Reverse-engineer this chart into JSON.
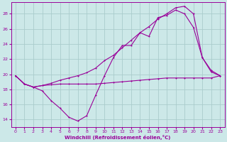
{
  "xlabel": "Windchill (Refroidissement éolien,°C)",
  "bg_color": "#cce8e8",
  "grid_color": "#aacccc",
  "line_color": "#990099",
  "xlim": [
    -0.5,
    23.5
  ],
  "ylim": [
    13.0,
    29.5
  ],
  "yticks": [
    14,
    16,
    18,
    20,
    22,
    24,
    26,
    28
  ],
  "xticks": [
    0,
    1,
    2,
    3,
    4,
    5,
    6,
    7,
    8,
    9,
    10,
    11,
    12,
    13,
    14,
    15,
    16,
    17,
    18,
    19,
    20,
    21,
    22,
    23
  ],
  "series1_x": [
    0,
    1,
    2,
    3,
    4,
    5,
    6,
    7,
    8,
    9,
    10,
    11,
    12,
    13,
    14,
    15,
    16,
    17,
    18,
    19,
    20,
    21,
    22,
    23
  ],
  "series1_y": [
    19.8,
    18.7,
    18.3,
    17.8,
    16.5,
    15.5,
    14.3,
    13.8,
    14.5,
    17.2,
    19.8,
    22.2,
    23.8,
    23.8,
    25.5,
    25.0,
    27.5,
    27.8,
    28.5,
    28.0,
    26.2,
    22.2,
    20.3,
    19.8
  ],
  "series2_x": [
    0,
    1,
    2,
    3,
    4,
    5,
    6,
    7,
    8,
    9,
    10,
    11,
    12,
    13,
    14,
    15,
    16,
    17,
    18,
    19,
    20,
    21,
    22,
    23
  ],
  "series2_y": [
    19.8,
    18.7,
    18.3,
    18.5,
    18.6,
    18.7,
    18.7,
    18.7,
    18.7,
    18.7,
    18.8,
    18.9,
    19.0,
    19.1,
    19.2,
    19.3,
    19.4,
    19.5,
    19.5,
    19.5,
    19.5,
    19.5,
    19.5,
    19.8
  ],
  "series3_x": [
    0,
    1,
    2,
    3,
    4,
    5,
    6,
    7,
    8,
    9,
    10,
    11,
    12,
    13,
    14,
    15,
    16,
    17,
    18,
    19,
    20,
    21,
    22,
    23
  ],
  "series3_y": [
    19.8,
    18.7,
    18.3,
    18.5,
    18.8,
    19.2,
    19.5,
    19.8,
    20.2,
    20.8,
    21.8,
    22.5,
    23.5,
    24.5,
    25.5,
    26.3,
    27.3,
    28.0,
    28.8,
    29.0,
    28.0,
    22.2,
    20.5,
    19.8
  ]
}
